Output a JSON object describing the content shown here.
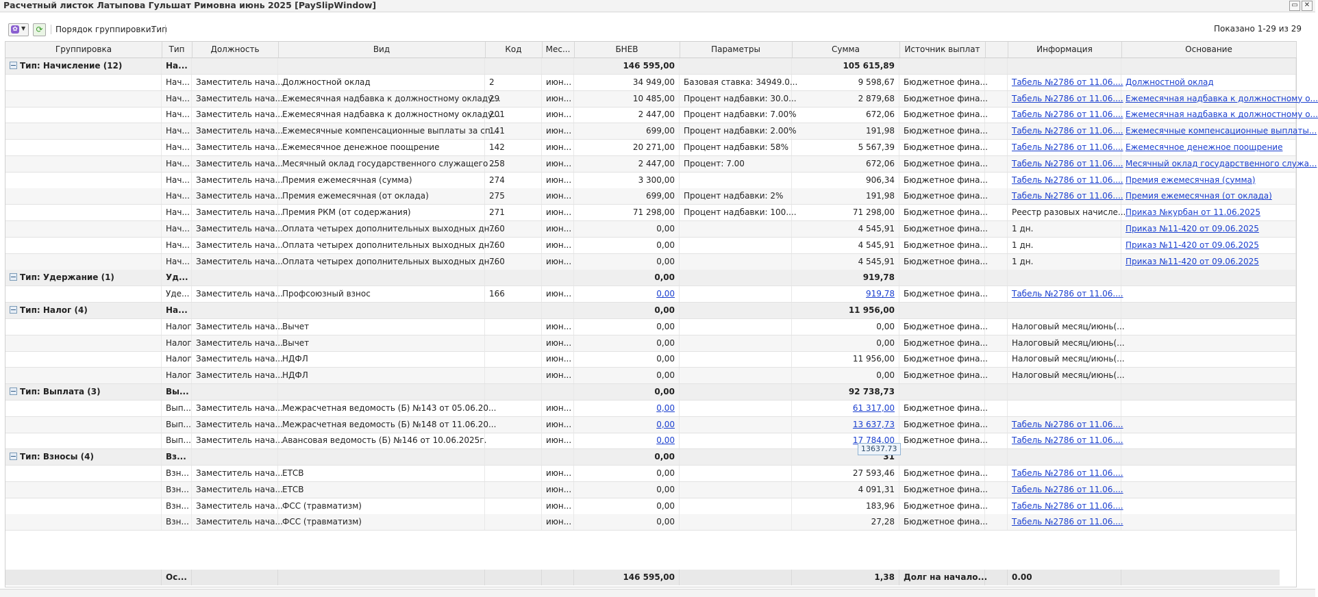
{
  "window": {
    "title": "Расчетный листок Латыпова Гульшат Римовна июнь 2025 [PaySlipWindow]",
    "restore_icon": "restore-icon",
    "close_icon": "close-icon"
  },
  "toolbar": {
    "menu_icon": "settings-menu-icon",
    "refresh_icon": "refresh-icon",
    "grouping_label": "Порядок группировки:",
    "grouping_value": "Тип",
    "shown_text": "Показано 1-29 из 29"
  },
  "columns": [
    "Группировка",
    "Тип",
    "Должность",
    "Вид",
    "Код",
    "Мес...",
    "БНЕВ",
    "Параметры",
    "Сумма",
    "Источник выплат",
    "",
    "Информация",
    "Основание"
  ],
  "rows": [
    {
      "group": true,
      "label": "Тип: Начисление (12)",
      "type": "На...",
      "bnev": "146 595,00",
      "sum": "105 615,89"
    },
    {
      "type": "Нач...",
      "pos": "Заместитель нача...",
      "kind": "Должностной оклад",
      "code": "2",
      "mon": "июн...",
      "bnev": "34 949,00",
      "params": "Базовая ставка: 34949.0...",
      "sum": "9 598,67",
      "src": "Бюджетное фина...",
      "info": "Табель №2786 от 11.06....",
      "info_link": true,
      "basis": "Должностной оклад",
      "basis_link": true
    },
    {
      "type": "Нач...",
      "pos": "Заместитель нача...",
      "kind": "Ежемесячная надбавка к должностному окладу...",
      "code": "29",
      "mon": "июн...",
      "bnev": "10 485,00",
      "params": "Процент надбавки: 30.0...",
      "sum": "2 879,68",
      "src": "Бюджетное фина...",
      "info": "Табель №2786 от 11.06....",
      "info_link": true,
      "basis": "Ежемесячная надбавка к должностному о...",
      "basis_link": true
    },
    {
      "type": "Нач...",
      "pos": "Заместитель нача...",
      "kind": "Ежемесячная надбавка к должностному окладу...",
      "code": "201",
      "mon": "июн...",
      "bnev": "2 447,00",
      "params": "Процент надбавки: 7.00%",
      "sum": "672,06",
      "src": "Бюджетное фина...",
      "info": "Табель №2786 от 11.06....",
      "info_link": true,
      "basis": "Ежемесячная надбавка к должностному о...",
      "basis_link": true
    },
    {
      "type": "Нач...",
      "pos": "Заместитель нача...",
      "kind": "Ежемесячные компенсационные выплаты за сп...",
      "code": "141",
      "mon": "июн...",
      "bnev": "699,00",
      "params": "Процент надбавки: 2.00%",
      "sum": "191,98",
      "src": "Бюджетное фина...",
      "info": "Табель №2786 от 11.06....",
      "info_link": true,
      "basis": "Ежемесячные компенсационные выплаты...",
      "basis_link": true
    },
    {
      "type": "Нач...",
      "pos": "Заместитель нача...",
      "kind": "Ежемесячное денежное поощрение",
      "code": "142",
      "mon": "июн...",
      "bnev": "20 271,00",
      "params": "Процент надбавки: 58%",
      "sum": "5 567,39",
      "src": "Бюджетное фина...",
      "info": "Табель №2786 от 11.06....",
      "info_link": true,
      "basis": "Ежемесячное денежное поощрение",
      "basis_link": true
    },
    {
      "type": "Нач...",
      "pos": "Заместитель нача...",
      "kind": "Месячный оклад государственного служащего ...",
      "code": "258",
      "mon": "июн...",
      "bnev": "2 447,00",
      "params": "Процент: 7.00",
      "sum": "672,06",
      "src": "Бюджетное фина...",
      "info": "Табель №2786 от 11.06....",
      "info_link": true,
      "basis": "Месячный оклад государственного служа...",
      "basis_link": true
    },
    {
      "type": "Нач...",
      "pos": "Заместитель нача...",
      "kind": "Премия ежемесячная (сумма)",
      "code": "274",
      "mon": "июн...",
      "bnev": "3 300,00",
      "params": "",
      "sum": "906,34",
      "src": "Бюджетное фина...",
      "info": "Табель №2786 от 11.06....",
      "info_link": true,
      "basis": "Премия ежемесячная (сумма)",
      "basis_link": true
    },
    {
      "type": "Нач...",
      "pos": "Заместитель нача...",
      "kind": "Премия ежемесячная (от оклада)",
      "code": "275",
      "mon": "июн...",
      "bnev": "699,00",
      "params": "Процент надбавки: 2%",
      "sum": "191,98",
      "src": "Бюджетное фина...",
      "info": "Табель №2786 от 11.06....",
      "info_link": true,
      "basis": "Премия ежемесячная (от оклада)",
      "basis_link": true
    },
    {
      "type": "Нач...",
      "pos": "Заместитель нача...",
      "kind": "Премия РКМ (от содержания)",
      "code": "271",
      "mon": "июн...",
      "bnev": "71 298,00",
      "params": "Процент надбавки: 100....",
      "sum": "71 298,00",
      "src": "Бюджетное фина...",
      "info": "Реестр разовых начисле...",
      "info_link": false,
      "basis": "Приказ №курбан от 11.06.2025",
      "basis_link": true
    },
    {
      "type": "Нач...",
      "pos": "Заместитель нача...",
      "kind": "Оплата четырех дополнительных выходных дн...",
      "code": "760",
      "mon": "июн...",
      "bnev": "0,00",
      "params": "",
      "sum": "4 545,91",
      "src": "Бюджетное фина...",
      "info": "1 дн.",
      "info_link": false,
      "basis": "Приказ №11-420 от 09.06.2025",
      "basis_link": true
    },
    {
      "type": "Нач...",
      "pos": "Заместитель нача...",
      "kind": "Оплата четырех дополнительных выходных дн...",
      "code": "760",
      "mon": "июн...",
      "bnev": "0,00",
      "params": "",
      "sum": "4 545,91",
      "src": "Бюджетное фина...",
      "info": "1 дн.",
      "info_link": false,
      "basis": "Приказ №11-420 от 09.06.2025",
      "basis_link": true
    },
    {
      "type": "Нач...",
      "pos": "Заместитель нача...",
      "kind": "Оплата четырех дополнительных выходных дн...",
      "code": "760",
      "mon": "июн...",
      "bnev": "0,00",
      "params": "",
      "sum": "4 545,91",
      "src": "Бюджетное фина...",
      "info": "1 дн.",
      "info_link": false,
      "basis": "Приказ №11-420 от 09.06.2025",
      "basis_link": true
    },
    {
      "group": true,
      "label": "Тип: Удержание (1)",
      "type": "Уд...",
      "bnev": "0,00",
      "sum": "919,78"
    },
    {
      "type": "Уде...",
      "pos": "Заместитель нача...",
      "kind": "Профсоюзный взнос",
      "code": "166",
      "mon": "июн...",
      "bnev": "0,00",
      "bnev_link": true,
      "params": "",
      "sum": "919,78",
      "sum_link": true,
      "src": "Бюджетное фина...",
      "info": "Табель №2786 от 11.06....",
      "info_link": true,
      "basis": "",
      "basis_link": false
    },
    {
      "group": true,
      "label": "Тип: Налог (4)",
      "type": "На...",
      "bnev": "0,00",
      "sum": "11 956,00"
    },
    {
      "type": "Налог",
      "pos": "Заместитель нача...",
      "kind": "Вычет",
      "code": "",
      "mon": "июн...",
      "bnev": "0,00",
      "params": "",
      "sum": "0,00",
      "src": "Бюджетное фина...",
      "info": "Налоговый месяц/июнь(...",
      "info_link": false,
      "basis": "",
      "basis_link": false
    },
    {
      "type": "Налог",
      "pos": "Заместитель нача...",
      "kind": "Вычет",
      "code": "",
      "mon": "июн...",
      "bnev": "0,00",
      "params": "",
      "sum": "0,00",
      "src": "Бюджетное фина...",
      "info": "Налоговый месяц/июнь(...",
      "info_link": false,
      "basis": "",
      "basis_link": false
    },
    {
      "type": "Налог",
      "pos": "Заместитель нача...",
      "kind": "НДФЛ",
      "code": "",
      "mon": "июн...",
      "bnev": "0,00",
      "params": "",
      "sum": "11 956,00",
      "src": "Бюджетное фина...",
      "info": "Налоговый месяц/июнь(...",
      "info_link": false,
      "basis": "",
      "basis_link": false
    },
    {
      "type": "Налог",
      "pos": "Заместитель нача...",
      "kind": "НДФЛ",
      "code": "",
      "mon": "июн...",
      "bnev": "0,00",
      "params": "",
      "sum": "0,00",
      "src": "Бюджетное фина...",
      "info": "Налоговый месяц/июнь(...",
      "info_link": false,
      "basis": "",
      "basis_link": false
    },
    {
      "group": true,
      "label": "Тип: Выплата (3)",
      "type": "Вы...",
      "bnev": "0,00",
      "sum": "92 738,73"
    },
    {
      "type": "Вып...",
      "pos": "Заместитель нача...",
      "kind": "Межрасчетная ведомость (Б) №143 от 05.06.20...",
      "code": "",
      "mon": "июн...",
      "bnev": "0,00",
      "bnev_link": true,
      "params": "",
      "sum": "61 317,00",
      "sum_link": true,
      "src": "Бюджетное фина...",
      "info": "",
      "info_link": false,
      "basis": "",
      "basis_link": false
    },
    {
      "type": "Вып...",
      "pos": "Заместитель нача...",
      "kind": "Межрасчетная ведомость (Б) №148 от 11.06.20...",
      "code": "",
      "mon": "июн...",
      "bnev": "0,00",
      "bnev_link": true,
      "params": "",
      "sum": "13 637,73",
      "sum_link": true,
      "src": "Бюджетное фина...",
      "info": "Табель №2786 от 11.06....",
      "info_link": true,
      "basis": "",
      "basis_link": false
    },
    {
      "type": "Вып...",
      "pos": "Заместитель нача...",
      "kind": "Авансовая ведомость (Б) №146 от 10.06.2025г.",
      "code": "",
      "mon": "июн...",
      "bnev": "0,00",
      "bnev_link": true,
      "params": "",
      "sum": "17 784,00",
      "sum_link": true,
      "src": "Бюджетное фина...",
      "info": "Табель №2786 от 11.06....",
      "info_link": true,
      "basis": "",
      "basis_link": false
    },
    {
      "group": true,
      "label": "Тип: Взносы (4)",
      "type": "Вз...",
      "bnev": "0,00",
      "sum": "31"
    },
    {
      "type": "Взн...",
      "pos": "Заместитель нача...",
      "kind": "ЕТСВ",
      "code": "",
      "mon": "июн...",
      "bnev": "0,00",
      "params": "",
      "sum": "27 593,46",
      "src": "Бюджетное фина...",
      "info": "Табель №2786 от 11.06....",
      "info_link": true,
      "basis": "",
      "basis_link": false
    },
    {
      "type": "Взн...",
      "pos": "Заместитель нача...",
      "kind": "ЕТСВ",
      "code": "",
      "mon": "июн...",
      "bnev": "0,00",
      "params": "",
      "sum": "4 091,31",
      "src": "Бюджетное фина...",
      "info": "Табель №2786 от 11.06....",
      "info_link": true,
      "basis": "",
      "basis_link": false
    },
    {
      "type": "Взн...",
      "pos": "Заместитель нача...",
      "kind": "ФСС (травматизм)",
      "code": "",
      "mon": "июн...",
      "bnev": "0,00",
      "params": "",
      "sum": "183,96",
      "src": "Бюджетное фина...",
      "info": "Табель №2786 от 11.06....",
      "info_link": true,
      "basis": "",
      "basis_link": false
    },
    {
      "type": "Взн...",
      "pos": "Заместитель нача...",
      "kind": "ФСС (травматизм)",
      "code": "",
      "mon": "июн...",
      "bnev": "0,00",
      "params": "",
      "sum": "27,28",
      "src": "Бюджетное фина...",
      "info": "Табель №2786 от 11.06....",
      "info_link": true,
      "basis": "",
      "basis_link": false
    }
  ],
  "footer": {
    "type": "Ос...",
    "bnev": "146 595,00",
    "sum": "1,38",
    "src": "Долг на начало...",
    "extra": "0.00"
  },
  "tooltip": "13637.73"
}
